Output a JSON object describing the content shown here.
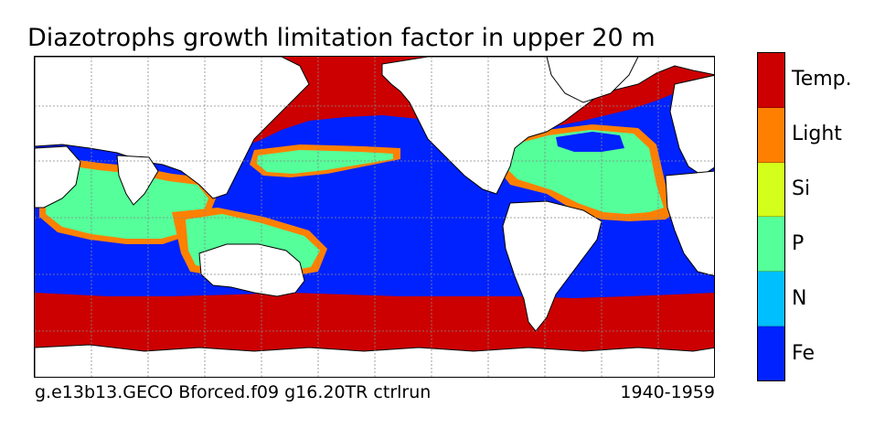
{
  "title": "Diazotrophs growth limitation factor in upper 20 m",
  "caption_left": "g.e13b13.GECO Bforced.f09 g16.20TR ctrlrun",
  "caption_right": "1940-1959",
  "legend": [
    {
      "label": "Temp.",
      "color": "#cc0000"
    },
    {
      "label": "Light",
      "color": "#ff8000"
    },
    {
      "label": "Si",
      "color": "#d4ff1a"
    },
    {
      "label": "P",
      "color": "#55ff99"
    },
    {
      "label": "N",
      "color": "#00bfff"
    },
    {
      "label": "Fe",
      "color": "#0022ff"
    }
  ],
  "colors": {
    "land": "#ffffff",
    "coast": "#000000",
    "grid": "#888888"
  }
}
